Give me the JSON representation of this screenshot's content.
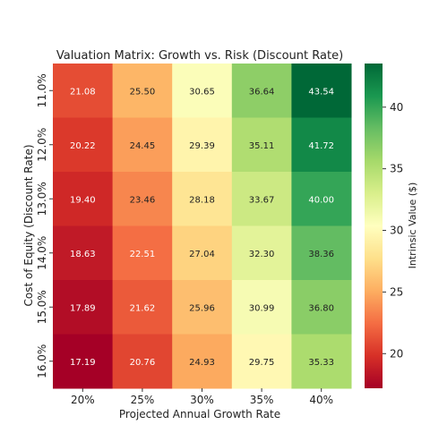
{
  "chart_data": {
    "type": "heatmap",
    "title": "Valuation Matrix: Growth vs. Risk (Discount Rate)",
    "xlabel": "Projected Annual Growth Rate",
    "ylabel": "Cost of Equity (Discount Rate)",
    "x_categories": [
      "20%",
      "25%",
      "30%",
      "35%",
      "40%"
    ],
    "y_categories": [
      "11.0%",
      "12.0%",
      "13.0%",
      "14.0%",
      "15.0%",
      "16.0%"
    ],
    "values": [
      [
        21.08,
        25.5,
        30.65,
        36.64,
        43.54
      ],
      [
        20.22,
        24.45,
        29.39,
        35.11,
        41.72
      ],
      [
        19.4,
        23.46,
        28.18,
        33.67,
        40.0
      ],
      [
        18.63,
        22.51,
        27.04,
        32.3,
        38.36
      ],
      [
        17.89,
        21.62,
        25.96,
        30.99,
        36.8
      ],
      [
        17.19,
        20.76,
        24.93,
        29.75,
        35.33
      ]
    ],
    "colorbar": {
      "label": "Intrinsic Value ($)",
      "ticks": [
        20,
        25,
        30,
        35,
        40
      ],
      "range": [
        17.19,
        43.54
      ],
      "colormap": "RdYlGn"
    }
  }
}
